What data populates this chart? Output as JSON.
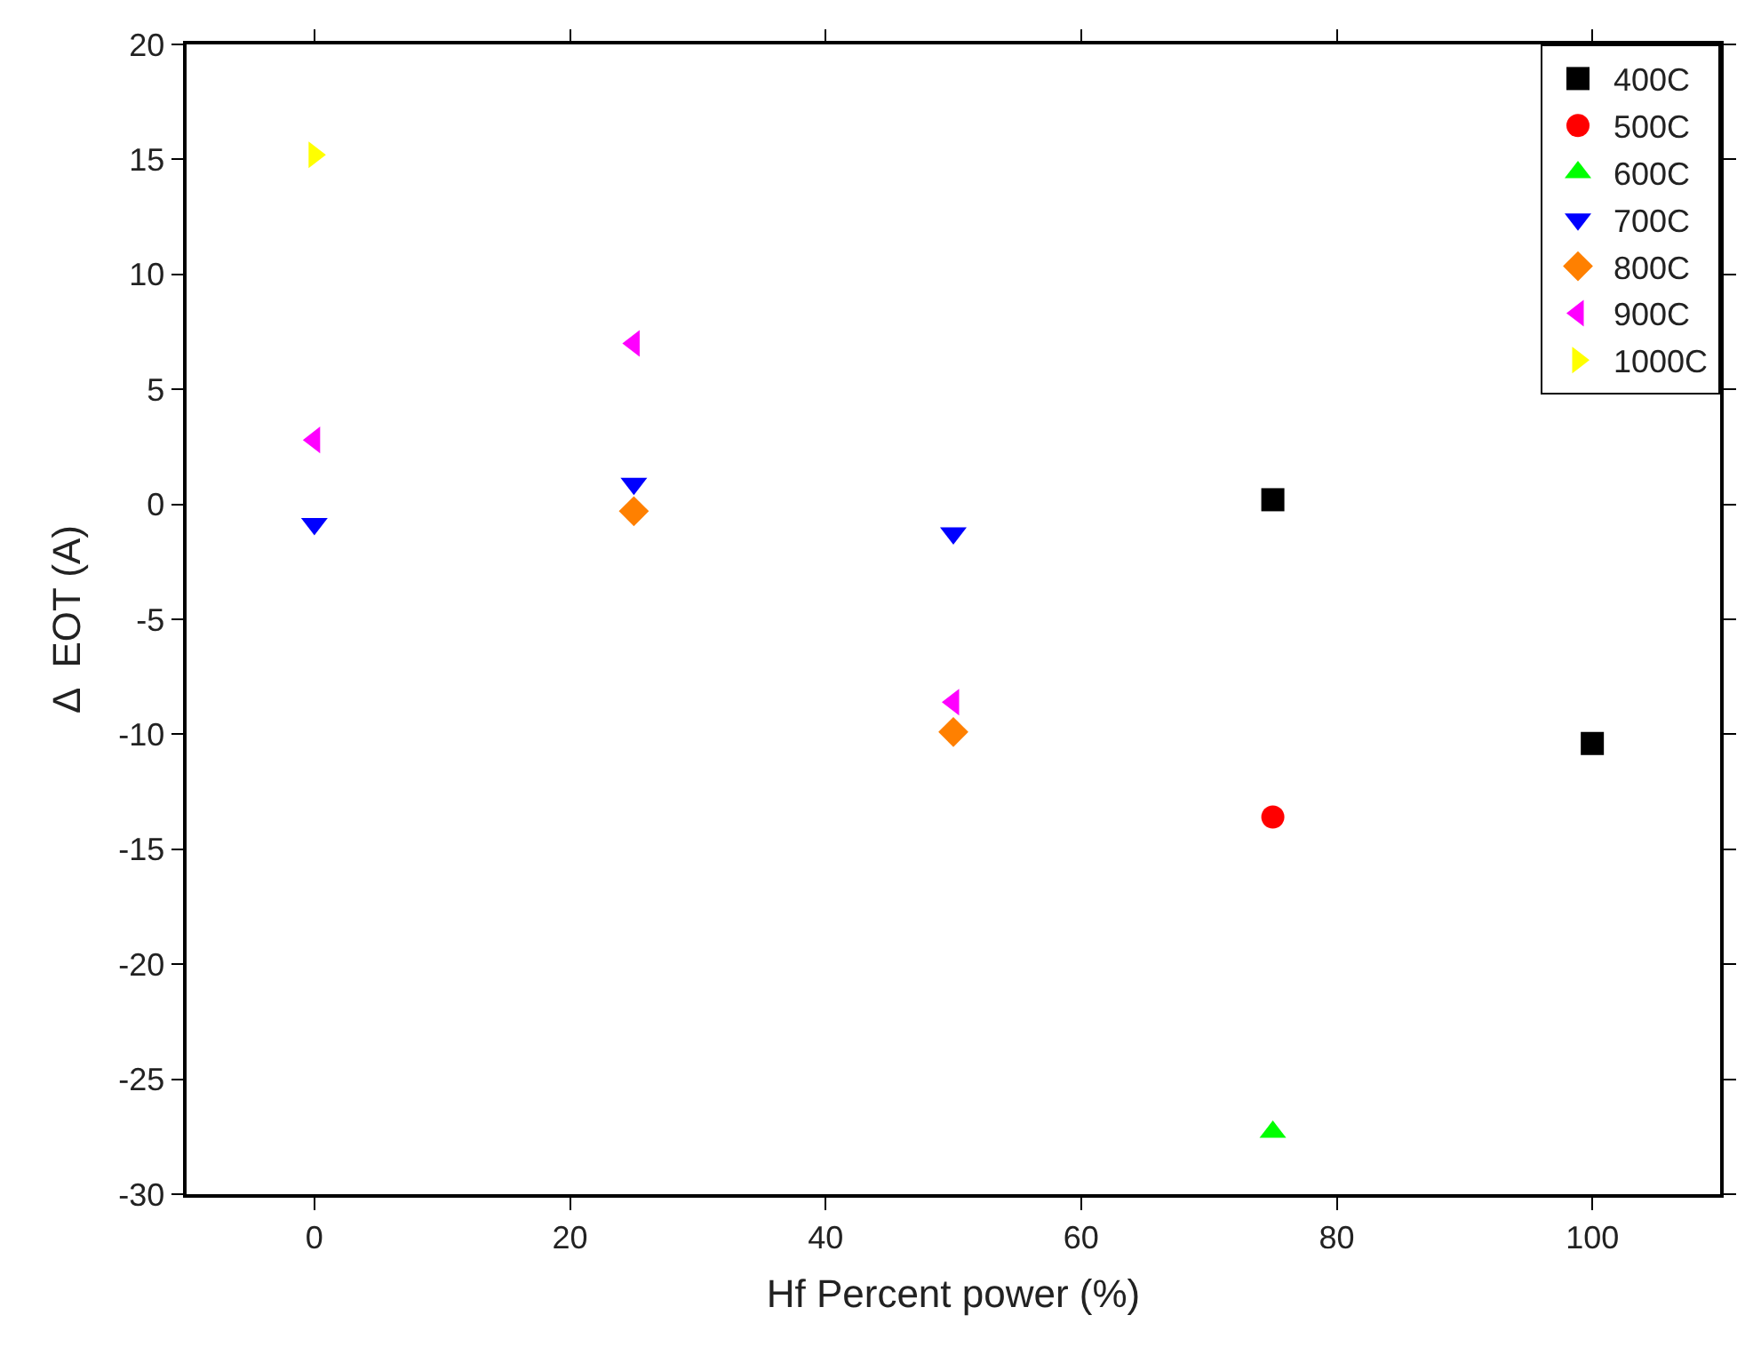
{
  "chart_data": {
    "type": "scatter",
    "xlabel": "Hf Percent power (%)",
    "ylabel": "Δ  EOT (A)",
    "xlim": [
      -10,
      110
    ],
    "xticks": [
      0,
      20,
      40,
      60,
      80,
      100
    ],
    "ylim": [
      -30,
      20
    ],
    "yticks": [
      -30,
      -25,
      -20,
      -15,
      -10,
      -5,
      0,
      5,
      10,
      15,
      20
    ],
    "legend": "top right",
    "series": [
      {
        "name": "400C",
        "color": "#000000",
        "marker": "square",
        "x": [
          75,
          100
        ],
        "values": [
          0.2,
          -10.4
        ]
      },
      {
        "name": "500C",
        "color": "#ff0000",
        "marker": "circle",
        "x": [
          75
        ],
        "values": [
          -13.6
        ]
      },
      {
        "name": "600C",
        "color": "#00ff00",
        "marker": "triangle",
        "x": [
          75
        ],
        "values": [
          -27.3
        ]
      },
      {
        "name": "700C",
        "color": "#0000ff",
        "marker": "triangle-down",
        "x": [
          0,
          25,
          50
        ],
        "values": [
          -0.85,
          0.9,
          -1.25
        ]
      },
      {
        "name": "800C",
        "color": "#ff8000",
        "marker": "diamond",
        "x": [
          25,
          50
        ],
        "values": [
          -0.3,
          -9.9
        ]
      },
      {
        "name": "900C",
        "color": "#ff00ff",
        "marker": "triangle-left",
        "x": [
          0,
          25,
          50
        ],
        "values": [
          2.8,
          7.0,
          -8.6
        ]
      },
      {
        "name": "1000C",
        "color": "#ffff00",
        "marker": "triangle-right",
        "x": [
          0
        ],
        "values": [
          15.2
        ]
      }
    ]
  }
}
